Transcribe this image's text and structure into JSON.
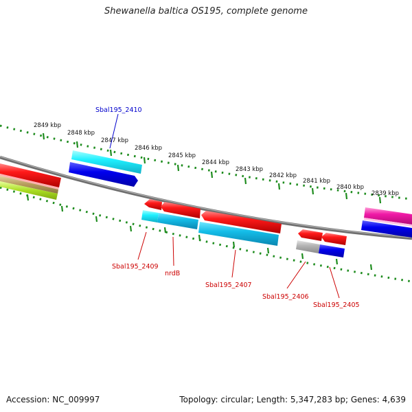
{
  "title": "Shewanella baltica OS195, complete genome",
  "footer": {
    "accession": "Accession: NC_009997",
    "topology": "Topology: circular; Length: 5,347,283 bp; Genes: 4,639"
  },
  "tick_labels": [
    "2849 kbp",
    "2848 kbp",
    "2847 kbp",
    "2846 kbp",
    "2845 kbp",
    "2844 kbp",
    "2843 kbp",
    "2842 kbp",
    "2841 kbp",
    "2840 kbp",
    "2839 kbp"
  ],
  "gene_labels": {
    "g2410": "Sbal195_2410",
    "g2409": "Sbal195_2409",
    "nrdB": "nrdB",
    "g2407": "Sbal195_2407",
    "g2406": "Sbal195_2406",
    "g2405": "Sbal195_2405"
  },
  "colors": {
    "backbone": "#7a7a7a",
    "tick": "#228b22",
    "forward_label": "#0000cc",
    "reverse_label": "#cc0000",
    "red": "#ee1111",
    "cyan": "#22ddee",
    "blue": "#0000ee",
    "magenta": "#ee22aa",
    "gray": "#aaaaaa",
    "olive": "#b5a060",
    "yellowgreen": "#aadd22"
  }
}
